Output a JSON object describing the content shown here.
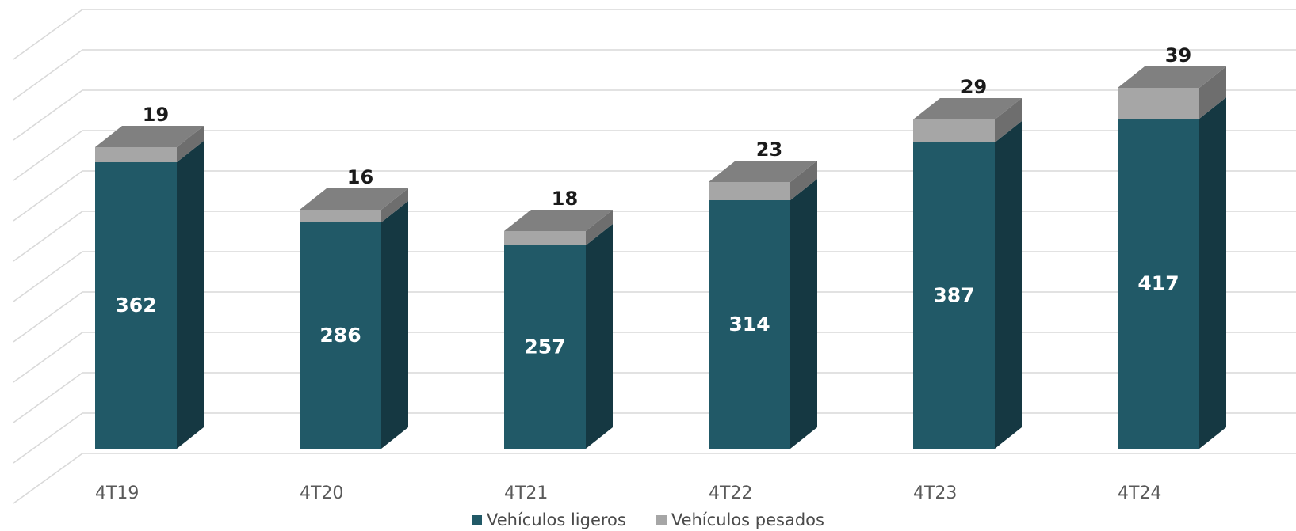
{
  "colors": {
    "ligeros_front": "#215967",
    "ligeros_side": "#153842",
    "pesados_front": "#a6a6a6",
    "pesados_side": "#6e6e6e",
    "top_cap": "#808080",
    "gridline": "#d9d9d9",
    "category_text": "#595959",
    "legend_text": "#4a4a4a"
  },
  "legend": {
    "ligeros": "Vehículos ligeros",
    "pesados": "Vehículos pesados"
  },
  "chart_data": {
    "type": "bar",
    "stacked": true,
    "three_d": true,
    "categories": [
      "4T19",
      "4T20",
      "4T21",
      "4T22",
      "4T23",
      "4T24"
    ],
    "series": [
      {
        "name": "Vehículos ligeros",
        "values": [
          362,
          286,
          257,
          314,
          387,
          417
        ]
      },
      {
        "name": "Vehículos pesados",
        "values": [
          19,
          16,
          18,
          23,
          29,
          39
        ]
      }
    ],
    "ylim": [
      0,
      550
    ],
    "grid": true,
    "y_tick_labels_shown": false,
    "legend_position": "bottom",
    "data_labels": true
  }
}
